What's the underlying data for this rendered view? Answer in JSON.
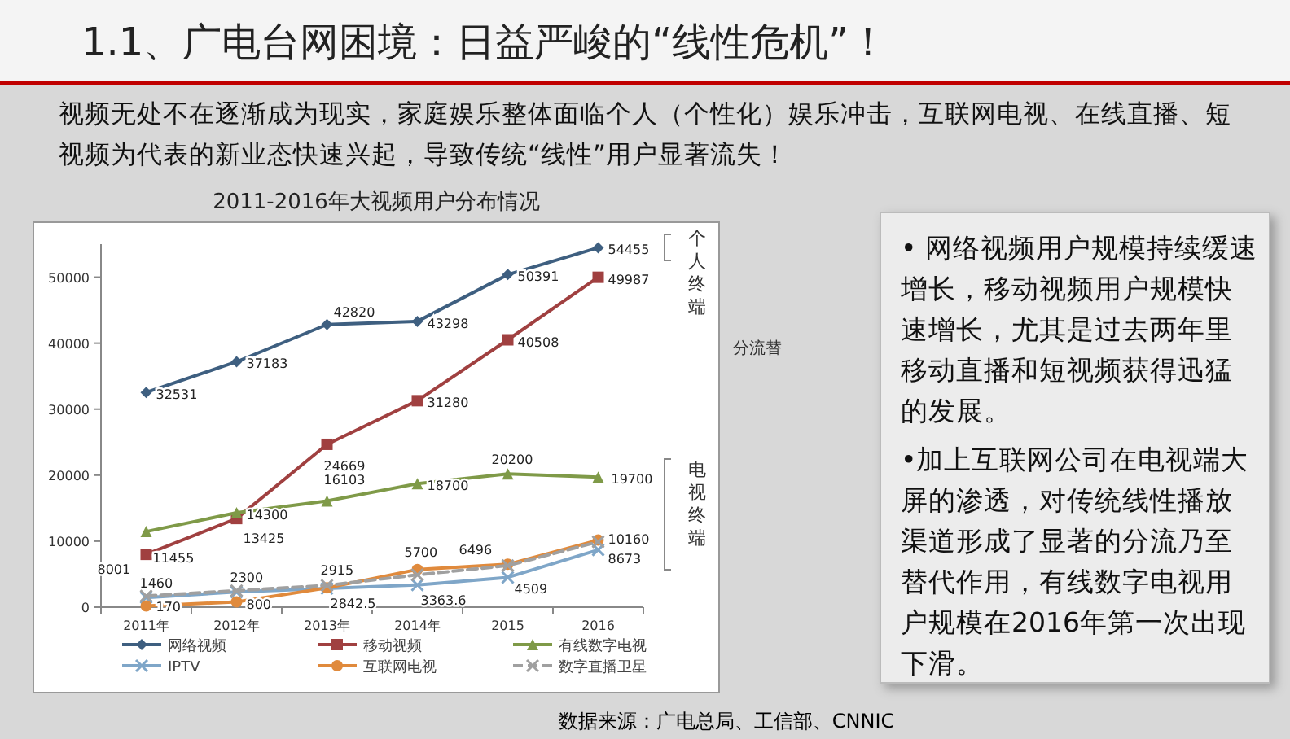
{
  "chart_data": {
    "type": "line",
    "title": "1.1、广电台网困境：日益严峻的“线性危机”！",
    "subtitle": "2011-2016年大视频用户分布情况",
    "categories": [
      "2011年",
      "2012年",
      "2013年",
      "2014年",
      "2015",
      "2016"
    ],
    "series": [
      {
        "name": "网络视频",
        "color": "#3e5f80",
        "marker": "diamond",
        "values": [
          32531,
          37183,
          42820,
          43298,
          50391,
          54455
        ],
        "value_labels": [
          "32531",
          "37183",
          "42820",
          "43298",
          "50391",
          "54455"
        ]
      },
      {
        "name": "移动视频",
        "color": "#a04040",
        "marker": "square",
        "values": [
          8001,
          13425,
          24669,
          31280,
          40508,
          49987
        ],
        "value_labels": [
          "8001",
          "13425",
          "24669",
          "31280",
          "40508",
          "49987"
        ]
      },
      {
        "name": "有线数字电视",
        "color": "#7f9a48",
        "marker": "triangle",
        "values": [
          11455,
          14300,
          16103,
          18700,
          20200,
          19700
        ],
        "value_labels": [
          "11455",
          "14300",
          "16103",
          "18700",
          "20200",
          "19700"
        ]
      },
      {
        "name": "IPTV",
        "color": "#7fa6c8",
        "marker": "cross",
        "values": [
          1460,
          2300,
          2842.5,
          3363.6,
          4509,
          8673
        ],
        "value_labels": [
          "1460",
          "2300",
          "2842.5",
          "3363.6",
          "4509",
          "8673"
        ]
      },
      {
        "name": "互联网电视",
        "color": "#e08a3c",
        "marker": "circle",
        "values": [
          170,
          800,
          2915,
          5700,
          6496,
          10160
        ],
        "value_labels": [
          "170",
          "800",
          "2915",
          "5700",
          "6496",
          "10160"
        ]
      },
      {
        "name": "数字直播卫星",
        "color": "#a0a0a0",
        "marker": "cross",
        "line_style": "dashed",
        "values": [
          1700,
          2500,
          3300,
          4900,
          6300,
          9900
        ]
      }
    ],
    "ylim": [
      0,
      55000
    ],
    "yticks": [
      0,
      10000,
      20000,
      30000,
      40000,
      50000
    ],
    "grid": false,
    "legend": "bottom",
    "annotations": [
      "视频无处不在逐渐成为现实，家庭娱乐整体面临个人（个性化）娱乐冲击，互联网电视、在线直播、短视频为代表的新业态快速兴起，导致传统“线性”用户显著流失！",
      "个人终端",
      "分流替",
      "电视终端",
      "• 网络视频用户规模持续缓速增长，移动视频用户规模快速增长，尤其是过去两年里移动直播和短视频获得迅猛的发展。",
      "•加上互联网公司在电视端大屏的渗透，对传统线性播放渠道形成了显著的分流乃至替代作用，有线数字电视用户规模在2016年第一次出现下滑。",
      "数据来源：广电总局、工信部、CNNIC"
    ]
  }
}
